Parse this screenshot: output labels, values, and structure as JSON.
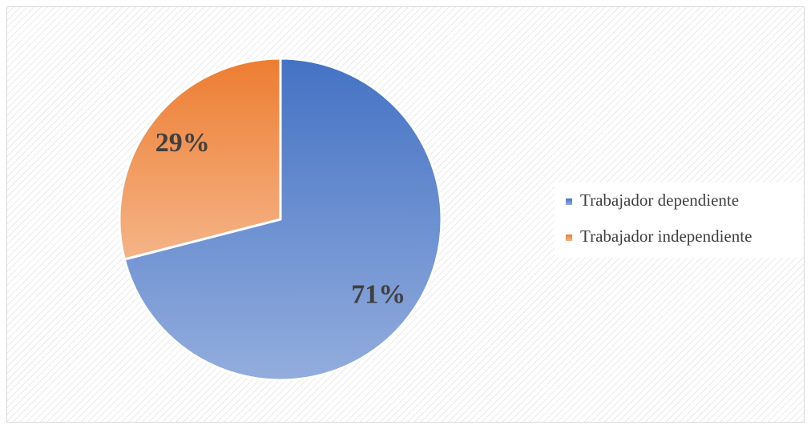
{
  "chart_data": {
    "type": "pie",
    "categories": [
      "Trabajador dependiente",
      "Trabajador independiente"
    ],
    "values": [
      71,
      29
    ],
    "value_labels": [
      "71%",
      "29%"
    ],
    "colors": [
      "#4472c4",
      "#ed7d31"
    ],
    "legend": "right"
  }
}
